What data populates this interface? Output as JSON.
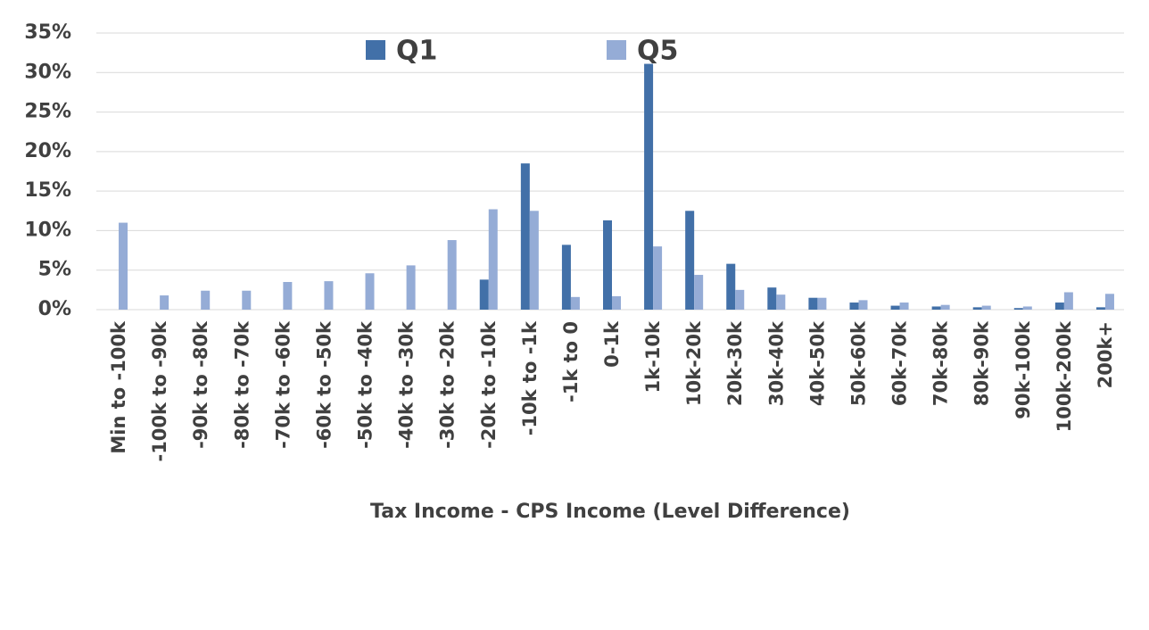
{
  "chart_data": {
    "type": "bar",
    "x_label": "Tax Income - CPS Income (Level Difference)",
    "categories": [
      "Min to -100k",
      "-100k to -90k",
      "-90k to -80k",
      "-80k to -70k",
      "-70k to -60k",
      "-60k to -50k",
      "-50k to -40k",
      "-40k to -30k",
      "-30k to -20k",
      "-20k to -10k",
      "-10k to -1k",
      "-1k to 0",
      "0-1k",
      "1k-10k",
      "10k-20k",
      "20k-30k",
      "30k-40k",
      "40k-50k",
      "50k-60k",
      "60k-70k",
      "70k-80k",
      "80k-90k",
      "90k-100k",
      "100k-200k",
      "200k+"
    ],
    "series": [
      {
        "name": "Q1",
        "color": "#4270a8",
        "values": [
          0,
          0,
          0,
          0,
          0,
          0,
          0,
          0,
          0,
          3.8,
          18.5,
          8.2,
          11.3,
          31.1,
          12.5,
          5.8,
          2.8,
          1.5,
          0.9,
          0.5,
          0.4,
          0.3,
          0.2,
          0.9,
          0.3
        ]
      },
      {
        "name": "Q5",
        "color": "#95acd6",
        "values": [
          11.0,
          1.8,
          2.4,
          2.4,
          3.5,
          3.6,
          4.6,
          5.6,
          8.8,
          12.7,
          12.5,
          1.6,
          1.7,
          8.0,
          4.4,
          2.5,
          1.9,
          1.5,
          1.2,
          0.9,
          0.6,
          0.5,
          0.4,
          2.2,
          2.0
        ]
      }
    ],
    "ylim": [
      0,
      35
    ],
    "yticks": [
      {
        "value": 0,
        "label": "0%"
      },
      {
        "value": 5,
        "label": "5%"
      },
      {
        "value": 10,
        "label": "10%"
      },
      {
        "value": 15,
        "label": "15%"
      },
      {
        "value": 20,
        "label": "20%"
      },
      {
        "value": 25,
        "label": "25%"
      },
      {
        "value": 30,
        "label": "30%"
      },
      {
        "value": 35,
        "label": "35%"
      }
    ],
    "grid": true,
    "legend": "top"
  }
}
